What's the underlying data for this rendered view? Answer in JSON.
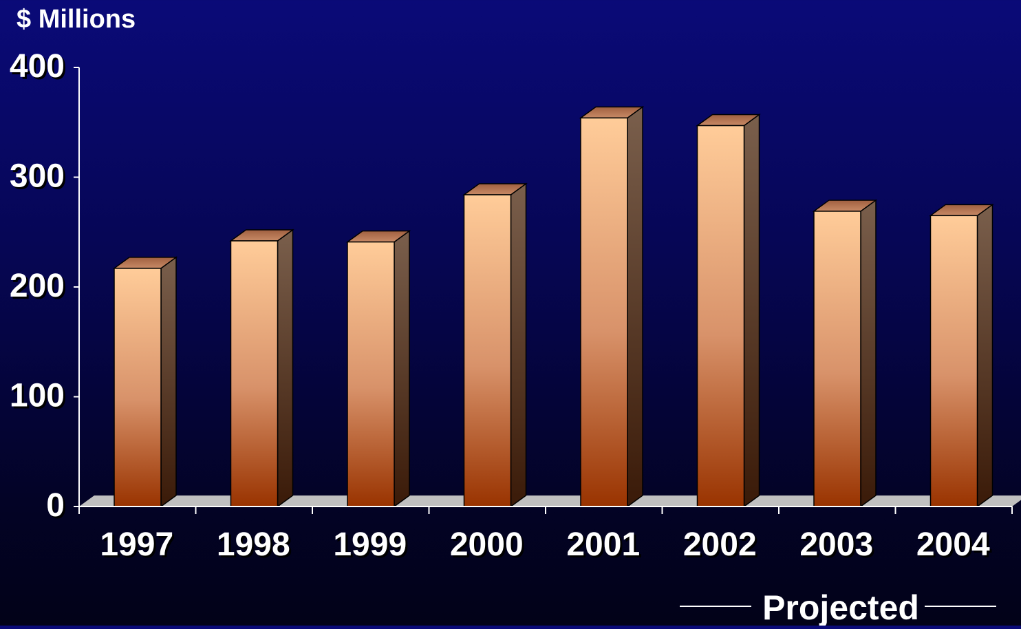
{
  "chart_data": {
    "type": "bar",
    "ylabel": "$ Millions",
    "xlabel": "",
    "categories": [
      "1997",
      "1998",
      "1999",
      "2000",
      "2001",
      "2002",
      "2003",
      "2004"
    ],
    "values": [
      217,
      242,
      241,
      284,
      354,
      347,
      269,
      265
    ],
    "ylim": [
      0,
      400
    ],
    "yticks": [
      "0",
      "100",
      "200",
      "300",
      "400"
    ],
    "grid": false,
    "style": "3d-bar",
    "annotation": "Projected",
    "annotation_categories": [
      "2003",
      "2004"
    ]
  },
  "colors": {
    "bar_light": "#ffcc99",
    "bar_dark": "#993300",
    "bar_side_top": "#7a5f4c",
    "bar_side_bottom": "#3a1a08",
    "floor": "#c0c0c0",
    "axis": "#ffffff",
    "text": "#ffffff"
  }
}
